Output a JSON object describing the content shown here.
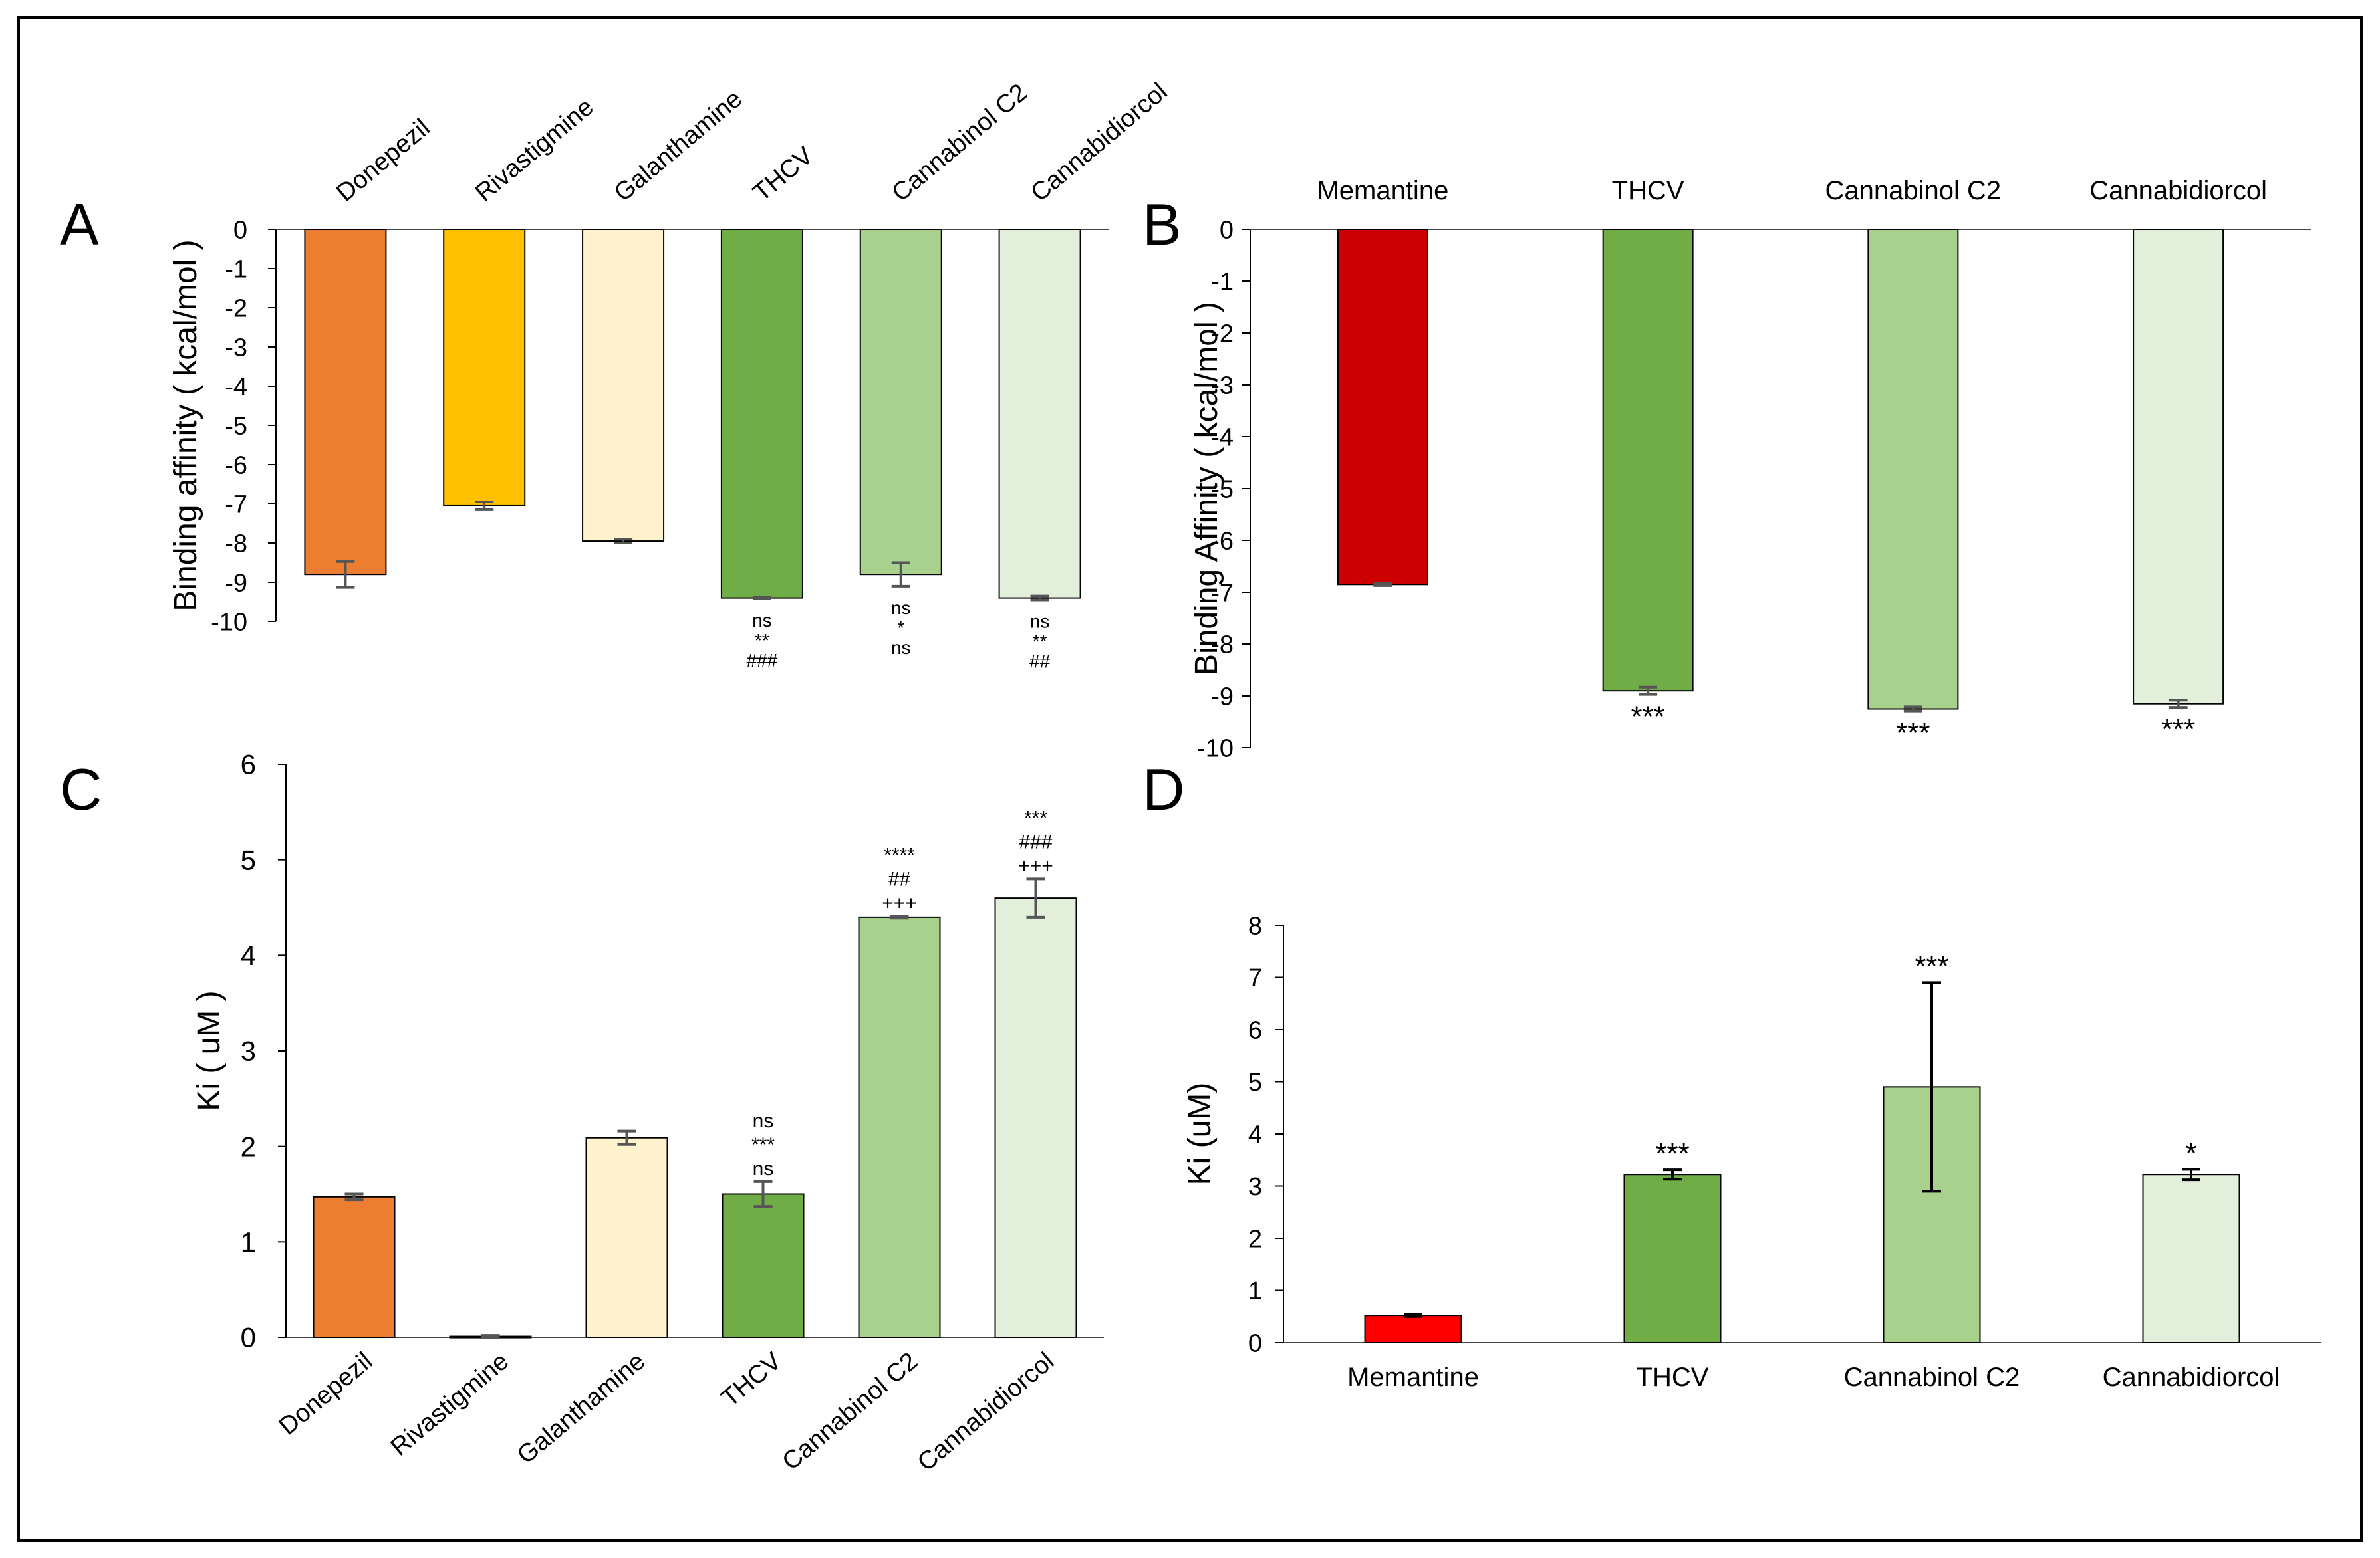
{
  "panel_labels": [
    "A",
    "B",
    "C",
    "D"
  ],
  "chart_data": [
    {
      "panel": "A",
      "type": "bar",
      "categories": [
        "Donepezil",
        "Rivastigmine",
        "Galanthamine",
        "THCV",
        "Cannabinol C2",
        "Cannabidiorcol"
      ],
      "values": [
        -8.8,
        -7.05,
        -7.95,
        -9.4,
        -8.8,
        -9.4
      ],
      "errors": [
        0.33,
        0.1,
        0.05,
        0.02,
        0.3,
        0.05
      ],
      "colors": [
        "#ED7D31",
        "#FFC000",
        "#FFF2CC",
        "#70AD47",
        "#A9D18E",
        "#E2EFDA"
      ],
      "ylabel": "Binding affinity ( kcal/mol )",
      "ylim": [
        -10,
        0
      ],
      "yticks": [
        0,
        -1,
        -2,
        -3,
        -4,
        -5,
        -6,
        -7,
        -8,
        -9,
        -10
      ],
      "annotations": [
        [],
        [],
        [],
        [
          "ns",
          "**",
          "###"
        ],
        [
          "ns",
          "*",
          "ns"
        ],
        [
          "ns",
          "**",
          "##"
        ]
      ]
    },
    {
      "panel": "B",
      "type": "bar",
      "categories": [
        "Memantine",
        "THCV",
        "Cannabinol C2",
        "Cannabidiorcol"
      ],
      "values": [
        -6.85,
        -8.9,
        -9.25,
        -9.15
      ],
      "errors": [
        0.02,
        0.07,
        0.04,
        0.07
      ],
      "colors": [
        "#CC0000",
        "#70AD47",
        "#A9D18E",
        "#E2EFDA"
      ],
      "ylabel": "Binding Affinity ( kcal/mol )",
      "ylim": [
        -10,
        0
      ],
      "yticks": [
        0,
        -1,
        -2,
        -3,
        -4,
        -5,
        -6,
        -7,
        -8,
        -9,
        -10
      ],
      "annotations": [
        [],
        [
          "***"
        ],
        [
          "***"
        ],
        [
          "***"
        ]
      ]
    },
    {
      "panel": "C",
      "type": "bar",
      "categories": [
        "Donepezil",
        "Rivastigmine",
        "Galanthamine",
        "THCV",
        "Cannabinol C2",
        "Cannabidiorcol"
      ],
      "values": [
        1.47,
        0.01,
        2.09,
        1.5,
        4.4,
        4.6
      ],
      "errors": [
        0.03,
        0.01,
        0.07,
        0.13,
        0.01,
        0.2
      ],
      "colors": [
        "#ED7D31",
        "#FFC000",
        "#FFF2CC",
        "#70AD47",
        "#A9D18E",
        "#E2EFDA"
      ],
      "ylabel": "Ki ( uM )",
      "ylim": [
        0,
        6
      ],
      "yticks": [
        0,
        1,
        2,
        3,
        4,
        5,
        6
      ],
      "annotations": [
        [],
        [],
        [],
        [
          "ns",
          "***",
          "ns"
        ],
        [
          "****",
          "##",
          "+++"
        ],
        [
          "***",
          "###",
          "+++"
        ]
      ]
    },
    {
      "panel": "D",
      "type": "bar",
      "categories": [
        "Memantine",
        "THCV",
        "Cannabinol C2",
        "Cannabidiorcol"
      ],
      "values": [
        0.52,
        3.22,
        4.9,
        3.22
      ],
      "errors": [
        0.02,
        0.09,
        2.0,
        0.1
      ],
      "colors": [
        "#FF0000",
        "#70AD47",
        "#A9D18E",
        "#E2EFDA"
      ],
      "ylabel": "Ki (uM)",
      "ylim": [
        0,
        8
      ],
      "yticks": [
        0,
        1,
        2,
        3,
        4,
        5,
        6,
        7,
        8
      ],
      "annotations": [
        [],
        [
          "***"
        ],
        [
          "***"
        ],
        [
          "*"
        ]
      ]
    }
  ]
}
